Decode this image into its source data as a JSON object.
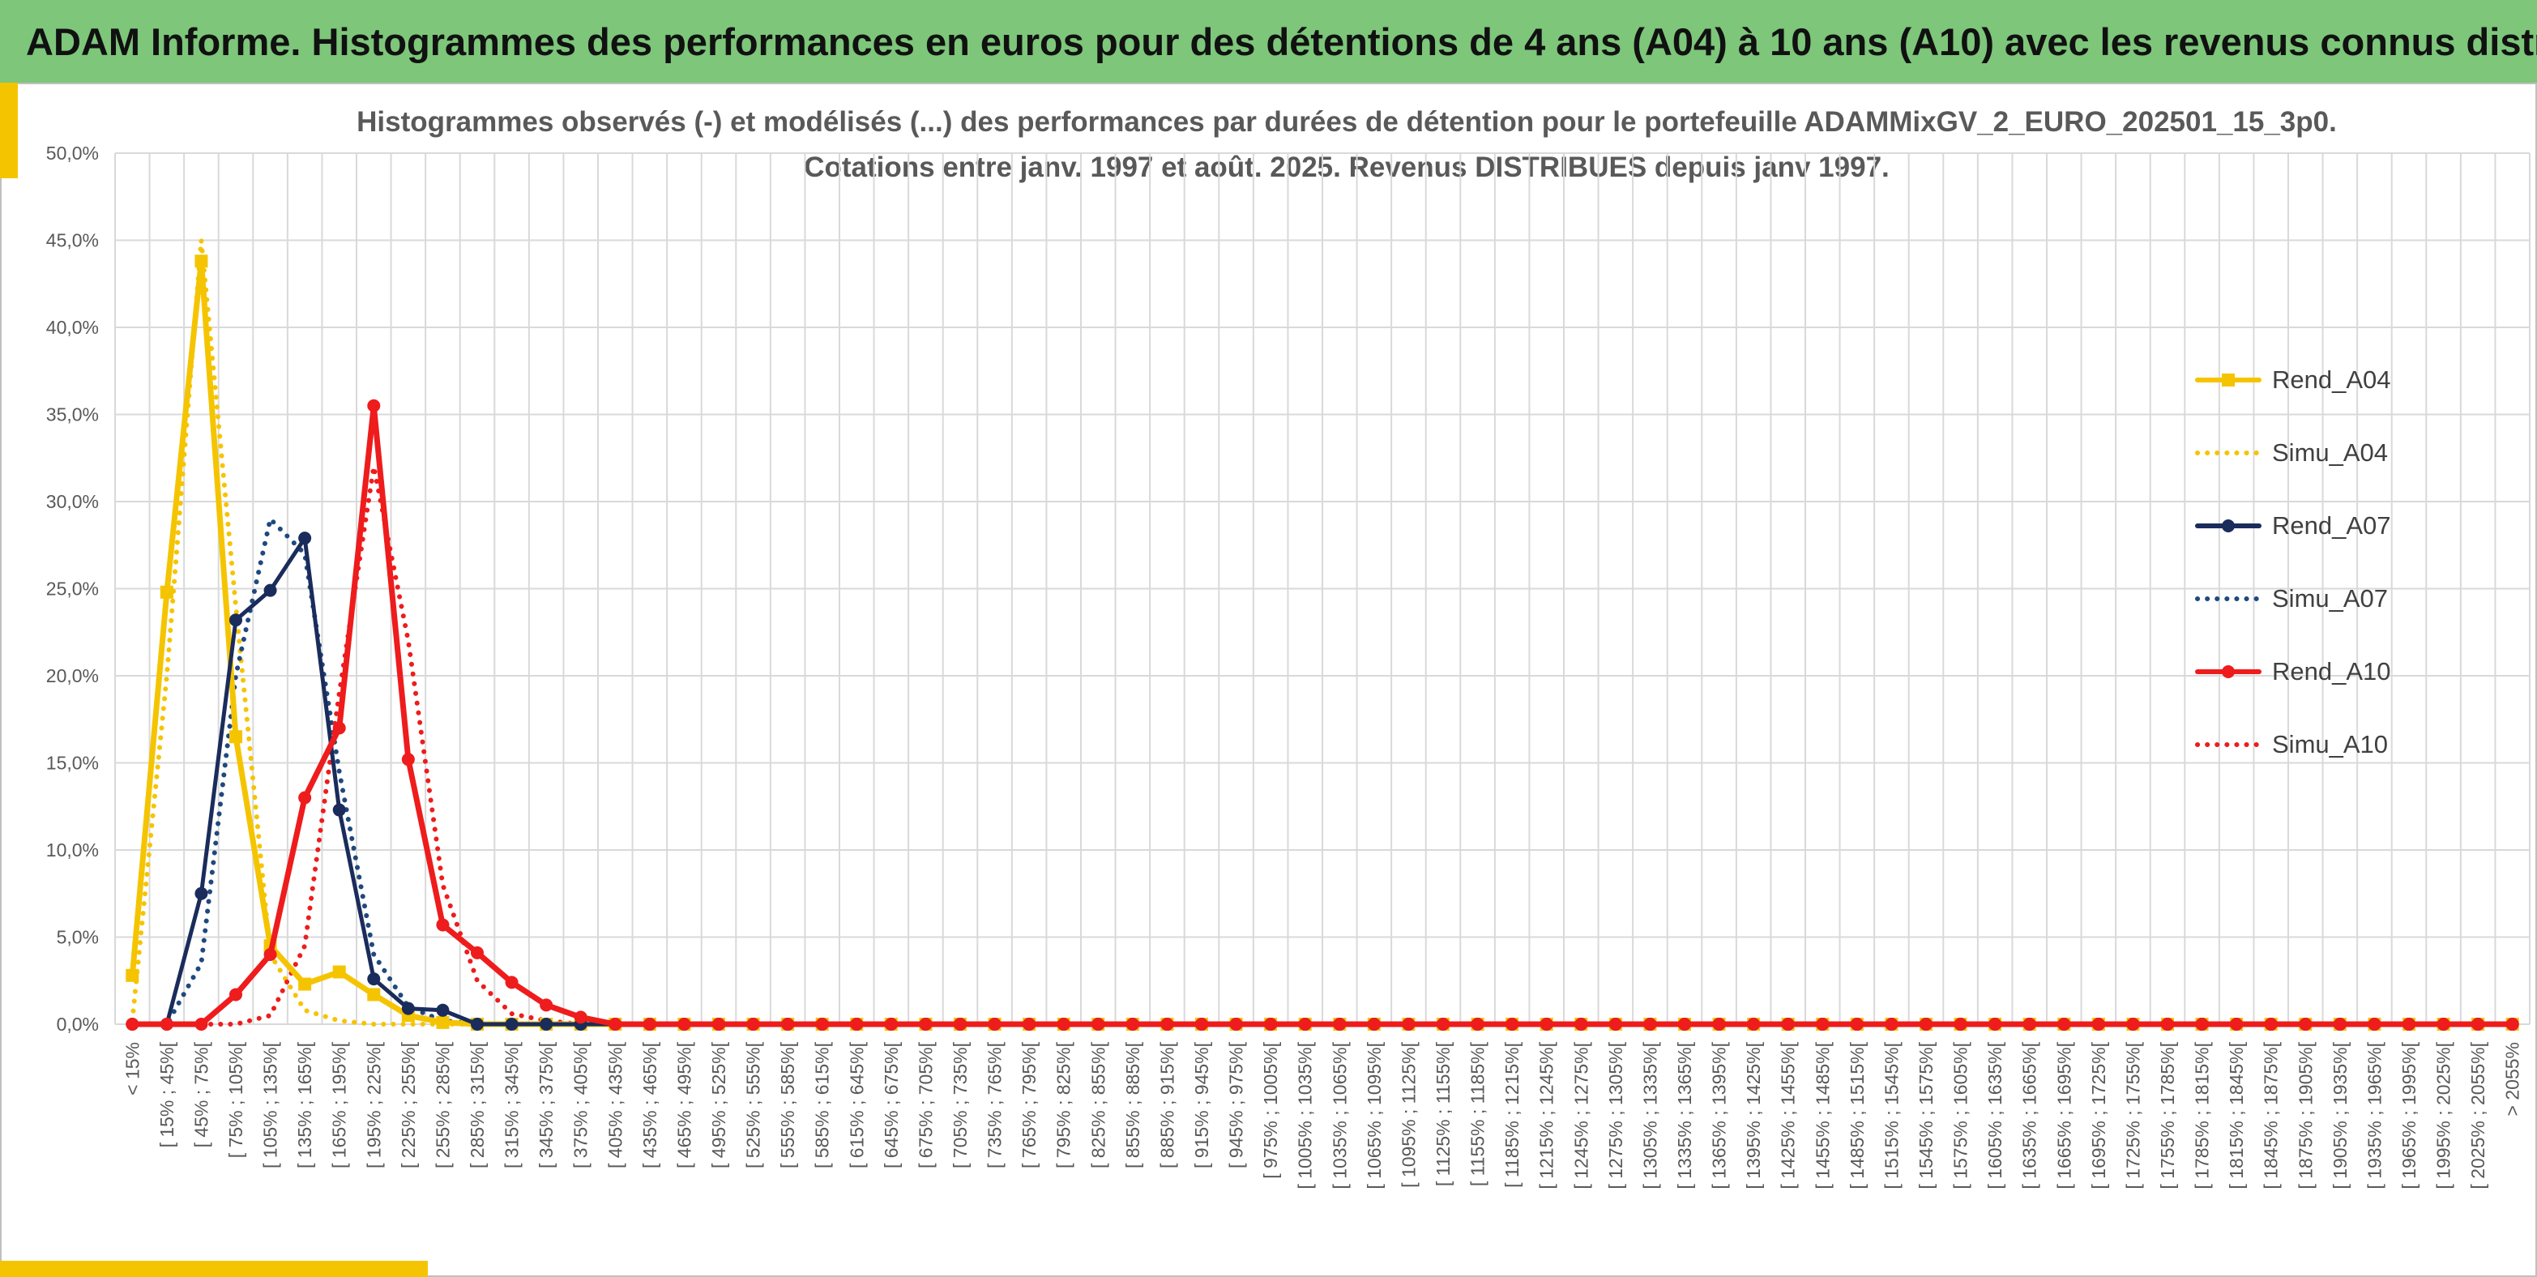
{
  "banner": {
    "title": "ADAM Informe. Histogrammes des performances en euros pour des détentions de 4 ans (A04) à 10 ans (A10) avec les revenus connus distribués"
  },
  "chart_data": {
    "type": "line",
    "title_line1": "Histogrammes observés (-) et modélisés (...) des performances par durées de détention pour le portefeuille ADAMMixGV_2_EURO_202501_15_3p0.",
    "title_line2": "Cotations entre janv. 1997 et août. 2025. Revenus DISTRIBUES depuis janv 1997.",
    "ylim": [
      0,
      50
    ],
    "yticks": [
      "0,0%",
      "5,0%",
      "10,0%",
      "15,0%",
      "20,0%",
      "25,0%",
      "30,0%",
      "35,0%",
      "40,0%",
      "45,0%",
      "50,0%"
    ],
    "grid": true,
    "legend_position": "right",
    "categories": [
      "< 15%",
      "[ 15% ; 45%[",
      "[ 45% ; 75%[",
      "[ 75% ; 105%[",
      "[ 105% ; 135%[",
      "[ 135% ; 165%[",
      "[ 165% ; 195%[",
      "[ 195% ; 225%[",
      "[ 225% ; 255%[",
      "[ 255% ; 285%[",
      "[ 285% ; 315%[",
      "[ 315% ; 345%[",
      "[ 345% ; 375%[",
      "[ 375% ; 405%[",
      "[ 405% ; 435%[",
      "[ 435% ; 465%[",
      "[ 465% ; 495%[",
      "[ 495% ; 525%[",
      "[ 525% ; 555%[",
      "[ 555% ; 585%[",
      "[ 585% ; 615%[",
      "[ 615% ; 645%[",
      "[ 645% ; 675%[",
      "[ 675% ; 705%[",
      "[ 705% ; 735%[",
      "[ 735% ; 765%[",
      "[ 765% ; 795%[",
      "[ 795% ; 825%[",
      "[ 825% ; 855%[",
      "[ 855% ; 885%[",
      "[ 885% ; 915%[",
      "[ 915% ; 945%[",
      "[ 945% ; 975%[",
      "[ 975% ; 1005%[",
      "[ 1005% ; 1035%[",
      "[ 1035% ; 1065%[",
      "[ 1065% ; 1095%[",
      "[ 1095% ; 1125%[",
      "[ 1125% ; 1155%[",
      "[ 1155% ; 1185%[",
      "[ 1185% ; 1215%[",
      "[ 1215% ; 1245%[",
      "[ 1245% ; 1275%[",
      "[ 1275% ; 1305%[",
      "[ 1305% ; 1335%[",
      "[ 1335% ; 1365%[",
      "[ 1365% ; 1395%[",
      "[ 1395% ; 1425%[",
      "[ 1425% ; 1455%[",
      "[ 1455% ; 1485%[",
      "[ 1485% ; 1515%[",
      "[ 1515% ; 1545%[",
      "[ 1545% ; 1575%[",
      "[ 1575% ; 1605%[",
      "[ 1605% ; 1635%[",
      "[ 1635% ; 1665%[",
      "[ 1665% ; 1695%[",
      "[ 1695% ; 1725%[",
      "[ 1725% ; 1755%[",
      "[ 1755% ; 1785%[",
      "[ 1785% ; 1815%[",
      "[ 1815% ; 1845%[",
      "[ 1845% ; 1875%[",
      "[ 1875% ; 1905%[",
      "[ 1905% ; 1935%[",
      "[ 1935% ; 1965%[",
      "[ 1965% ; 1995%[",
      "[ 1995% ; 2025%[",
      "[ 2025% ; 2055%[",
      "> 2055%"
    ],
    "series": [
      {
        "name": "Rend_A04",
        "color": "#f5c400",
        "style": "solid",
        "marker": "square",
        "values": [
          2.8,
          24.8,
          43.8,
          16.5,
          4.5,
          2.3,
          3.0,
          1.7,
          0.5,
          0.1,
          0,
          0,
          0,
          0,
          0,
          0,
          0,
          0,
          0,
          0,
          0,
          0,
          0,
          0,
          0,
          0,
          0,
          0,
          0,
          0,
          0,
          0,
          0,
          0,
          0,
          0,
          0,
          0,
          0,
          0,
          0,
          0,
          0,
          0,
          0,
          0,
          0,
          0,
          0,
          0,
          0,
          0,
          0,
          0,
          0,
          0,
          0,
          0,
          0,
          0,
          0,
          0,
          0,
          0,
          0,
          0,
          0,
          0,
          0,
          0
        ]
      },
      {
        "name": "Simu_A04",
        "color": "#f5c400",
        "style": "dotted",
        "values": [
          0.2,
          20.0,
          45.0,
          24.0,
          4.0,
          0.8,
          0.2,
          0,
          0,
          0,
          0,
          0,
          0,
          0,
          0,
          0,
          0,
          0,
          0,
          0,
          0,
          0,
          0,
          0,
          0,
          0,
          0,
          0,
          0,
          0,
          0,
          0,
          0,
          0,
          0,
          0,
          0,
          0,
          0,
          0,
          0,
          0,
          0,
          0,
          0,
          0,
          0,
          0,
          0,
          0,
          0,
          0,
          0,
          0,
          0,
          0,
          0,
          0,
          0,
          0,
          0,
          0,
          0,
          0,
          0,
          0,
          0,
          0,
          0,
          0
        ]
      },
      {
        "name": "Rend_A07",
        "color": "#1a2c5b",
        "style": "solid",
        "marker": "circle",
        "values": [
          0,
          0,
          7.5,
          23.2,
          24.9,
          27.9,
          12.3,
          2.6,
          0.9,
          0.8,
          0,
          0,
          0,
          0,
          0,
          0,
          0,
          0,
          0,
          0,
          0,
          0,
          0,
          0,
          0,
          0,
          0,
          0,
          0,
          0,
          0,
          0,
          0,
          0,
          0,
          0,
          0,
          0,
          0,
          0,
          0,
          0,
          0,
          0,
          0,
          0,
          0,
          0,
          0,
          0,
          0,
          0,
          0,
          0,
          0,
          0,
          0,
          0,
          0,
          0,
          0,
          0,
          0,
          0,
          0,
          0,
          0,
          0,
          0,
          0
        ]
      },
      {
        "name": "Simu_A07",
        "color": "#1f497d",
        "style": "dotted",
        "values": [
          0,
          0,
          3.5,
          20.0,
          29.0,
          27.0,
          14.5,
          4.0,
          1.0,
          0.2,
          0,
          0,
          0,
          0,
          0,
          0,
          0,
          0,
          0,
          0,
          0,
          0,
          0,
          0,
          0,
          0,
          0,
          0,
          0,
          0,
          0,
          0,
          0,
          0,
          0,
          0,
          0,
          0,
          0,
          0,
          0,
          0,
          0,
          0,
          0,
          0,
          0,
          0,
          0,
          0,
          0,
          0,
          0,
          0,
          0,
          0,
          0,
          0,
          0,
          0,
          0,
          0,
          0,
          0,
          0,
          0,
          0,
          0,
          0,
          0
        ]
      },
      {
        "name": "Rend_A10",
        "color": "#ee1c1c",
        "style": "solid",
        "marker": "circle",
        "values": [
          0,
          0,
          0,
          1.7,
          4.0,
          13.0,
          17.0,
          35.5,
          15.2,
          5.7,
          4.1,
          2.4,
          1.1,
          0.4,
          0,
          0,
          0,
          0,
          0,
          0,
          0,
          0,
          0,
          0,
          0,
          0,
          0,
          0,
          0,
          0,
          0,
          0,
          0,
          0,
          0,
          0,
          0,
          0,
          0,
          0,
          0,
          0,
          0,
          0,
          0,
          0,
          0,
          0,
          0,
          0,
          0,
          0,
          0,
          0,
          0,
          0,
          0,
          0,
          0,
          0,
          0,
          0,
          0,
          0,
          0,
          0,
          0,
          0,
          0,
          0
        ]
      },
      {
        "name": "Simu_A10",
        "color": "#ee1c1c",
        "style": "dotted",
        "values": [
          0,
          0,
          0,
          0,
          0.5,
          4.5,
          19.0,
          32.0,
          22.0,
          8.0,
          2.5,
          0.6,
          0.2,
          0,
          0,
          0,
          0,
          0,
          0,
          0,
          0,
          0,
          0,
          0,
          0,
          0,
          0,
          0,
          0,
          0,
          0,
          0,
          0,
          0,
          0,
          0,
          0,
          0,
          0,
          0,
          0,
          0,
          0,
          0,
          0,
          0,
          0,
          0,
          0,
          0,
          0,
          0,
          0,
          0,
          0,
          0,
          0,
          0,
          0,
          0,
          0,
          0,
          0,
          0,
          0,
          0,
          0,
          0,
          0,
          0
        ]
      }
    ]
  }
}
